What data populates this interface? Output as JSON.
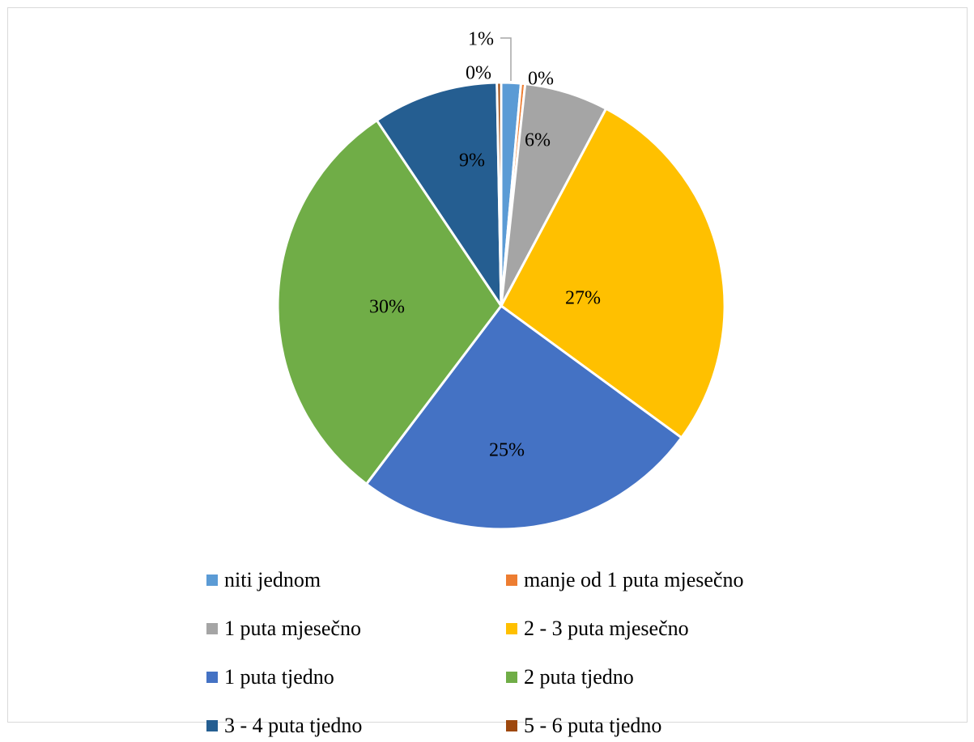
{
  "chart_data": {
    "type": "pie",
    "title": "",
    "categories": [
      "niti jednom",
      "manje od 1 puta mjesečno",
      "1 puta mjesečno",
      "2 - 3 puta mjesečno",
      "1 puta tjedno",
      "2 puta tjedno",
      "3 - 4 puta tjedno",
      "5 - 6 puta tjedno"
    ],
    "values": [
      1.4,
      0.3,
      6.0,
      27.0,
      25.0,
      30.0,
      9.0,
      0.3
    ],
    "data_labels": [
      "1%",
      "0%",
      "6%",
      "27%",
      "25%",
      "30%",
      "9%",
      "0%"
    ],
    "colors": [
      "#5b9bd5",
      "#ed7d31",
      "#a5a5a5",
      "#ffc000",
      "#4472c4",
      "#70ad47",
      "#255e91",
      "#9e480e"
    ],
    "start_angle_deg": 0,
    "direction": "clockwise",
    "legend_position": "bottom"
  }
}
